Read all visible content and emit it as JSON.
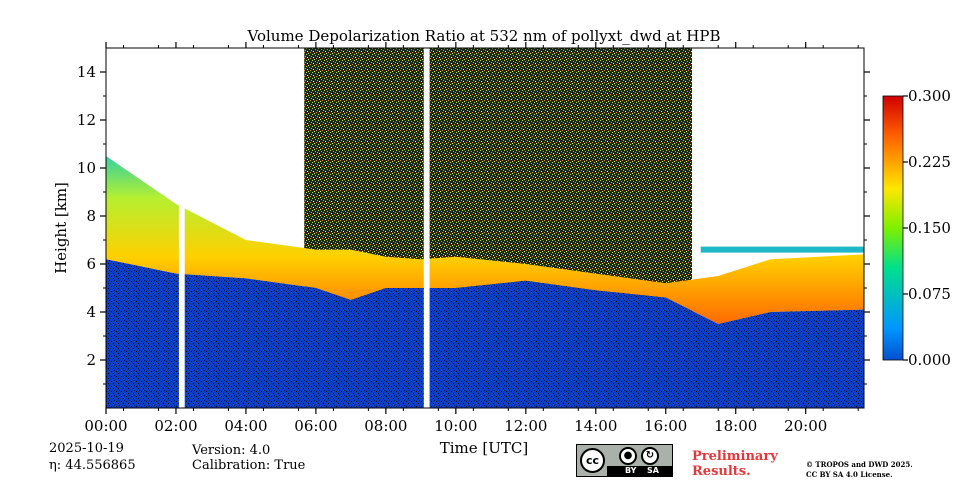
{
  "chart_data": {
    "type": "heatmap",
    "title": "Volume Depolarization Ratio at 532 nm of pollyxt_dwd at HPB",
    "xlabel": "Time [UTC]",
    "ylabel": "Height [km]",
    "xlim": [
      "00:00",
      "21:40"
    ],
    "ylim": [
      0,
      15
    ],
    "x_ticks": [
      "00:00",
      "02:00",
      "04:00",
      "06:00",
      "08:00",
      "10:00",
      "12:00",
      "14:00",
      "16:00",
      "18:00",
      "20:00"
    ],
    "y_ticks": [
      2,
      4,
      6,
      8,
      10,
      12,
      14
    ],
    "colorbar": {
      "min": 0.0,
      "max": 0.3,
      "ticks": [
        "0.000",
        "0.075",
        "0.150",
        "0.225",
        "0.300"
      ],
      "colormap": "jet"
    },
    "data_gaps_utc": [
      [
        "02:05",
        "02:15"
      ],
      [
        "09:05",
        "09:15"
      ]
    ],
    "layers": [
      {
        "name": "",
        "description": "low depolarization boundary layer",
        "time": [
          "00:00",
          "02:00",
          "04:00",
          "06:00",
          "07:00",
          "08:00",
          "09:00",
          "10:00",
          "12:00",
          "14:00",
          "16:00",
          "17:30",
          "19:00",
          "21:40"
        ],
        "top_km": [
          6.2,
          5.6,
          5.4,
          5.0,
          4.5,
          5.0,
          5.0,
          5.0,
          5.3,
          4.9,
          4.6,
          3.5,
          4.0,
          4.1
        ]
      },
      {
        "name": "",
        "description": "high depolarization aerosol/dust layer",
        "time": [
          "00:00",
          "02:00",
          "04:00",
          "06:00",
          "07:00",
          "08:00",
          "09:00",
          "10:00",
          "12:00",
          "14:00",
          "16:00",
          "17:30",
          "19:00",
          "21:40"
        ],
        "top_km": [
          10.5,
          8.5,
          7.0,
          6.6,
          6.6,
          6.3,
          6.2,
          6.3,
          6.0,
          5.6,
          5.2,
          5.5,
          6.2,
          6.4
        ]
      },
      {
        "name": "",
        "description": "elevated thin cloud layer",
        "time": [
          "17:00",
          "21:40"
        ],
        "height_km": [
          6.6,
          6.6
        ]
      }
    ]
  },
  "footer": {
    "date": "2025-10-19",
    "eta": "η: 44.556865",
    "version": "Version: 4.0",
    "calibration": "Calibration: True",
    "license_badge": {
      "cc": "cc",
      "by": "BY",
      "sa": "SA"
    },
    "preliminary": [
      "Preliminary",
      "Results."
    ],
    "copyright": [
      "© TROPOS and DWD 2025.",
      "CC BY SA 4.0 License."
    ]
  }
}
